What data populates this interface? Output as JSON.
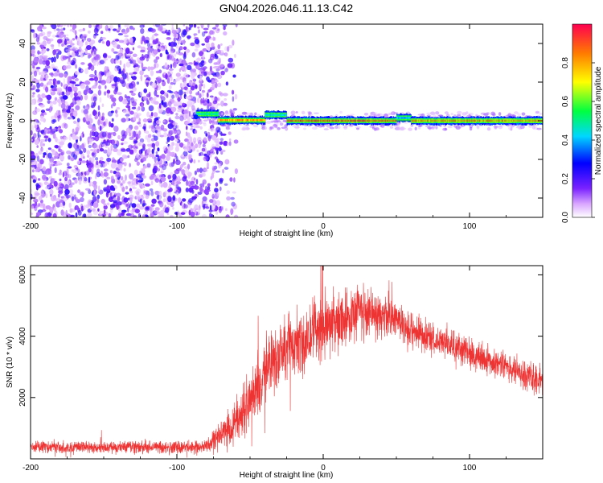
{
  "title": "GN04.2026.046.11.13.C42",
  "chart_data": [
    {
      "type": "heatmap",
      "name": "spectrogram",
      "xlabel": "Height of straight line (km)",
      "ylabel": "Frequency (Hz)",
      "xlim": [
        -200,
        150
      ],
      "ylim": [
        -50,
        50
      ],
      "x_ticks": [
        -200,
        -100,
        0,
        100
      ],
      "y_ticks": [
        -40,
        -20,
        0,
        20,
        40
      ],
      "noise_region_x": [
        -200,
        -69
      ],
      "line_frequency": 0,
      "line_segments": [
        {
          "x0": -87,
          "x1": -72,
          "freq": 3.5,
          "peak": 0.55
        },
        {
          "x0": -72,
          "x1": -40,
          "freq": 0.3,
          "peak": 0.9
        },
        {
          "x0": -40,
          "x1": -25,
          "freq": 3.0,
          "peak": 0.5
        },
        {
          "x0": -25,
          "x1": 50,
          "freq": 0.0,
          "peak": 1.0
        },
        {
          "x0": 50,
          "x1": 60,
          "freq": 1.5,
          "peak": 0.45
        },
        {
          "x0": 60,
          "x1": 150,
          "freq": 0.0,
          "peak": 0.9
        }
      ],
      "colorbar": {
        "label": "Normalized spectral amplitude",
        "range": [
          0.0,
          1.0
        ],
        "ticks": [
          0.0,
          0.2,
          0.4,
          0.6,
          0.8
        ],
        "tick_labels": [
          "0.0",
          "0.2",
          "0.4",
          "0.6",
          "0.8"
        ]
      }
    },
    {
      "type": "line",
      "name": "snr",
      "xlabel": "Height of straight line (km)",
      "ylabel": "SNR (10 * v/v)",
      "xlim": [
        -200,
        150
      ],
      "ylim": [
        0,
        6300
      ],
      "x_ticks": [
        -200,
        -100,
        0,
        100
      ],
      "y_ticks": [
        2000,
        4000,
        6000
      ],
      "color": "#ee3333",
      "envelope": {
        "x": [
          -200,
          -150,
          -100,
          -80,
          -72,
          -68,
          -62,
          -58,
          -52,
          -45,
          -38,
          -30,
          -20,
          -10,
          -5,
          0,
          5,
          10,
          20,
          25,
          30,
          40,
          50,
          60,
          80,
          100,
          120,
          150
        ],
        "mean": [
          400,
          380,
          380,
          420,
          700,
          900,
          1000,
          1300,
          1700,
          2300,
          3000,
          3500,
          3700,
          3900,
          4200,
          4300,
          4400,
          4500,
          4650,
          4900,
          4700,
          4750,
          4450,
          4200,
          3800,
          3450,
          3100,
          2500
        ],
        "spread": [
          140,
          140,
          140,
          160,
          300,
          350,
          450,
          550,
          650,
          700,
          700,
          700,
          700,
          750,
          750,
          750,
          700,
          650,
          550,
          650,
          550,
          550,
          450,
          400,
          350,
          330,
          320,
          320
        ]
      }
    }
  ]
}
